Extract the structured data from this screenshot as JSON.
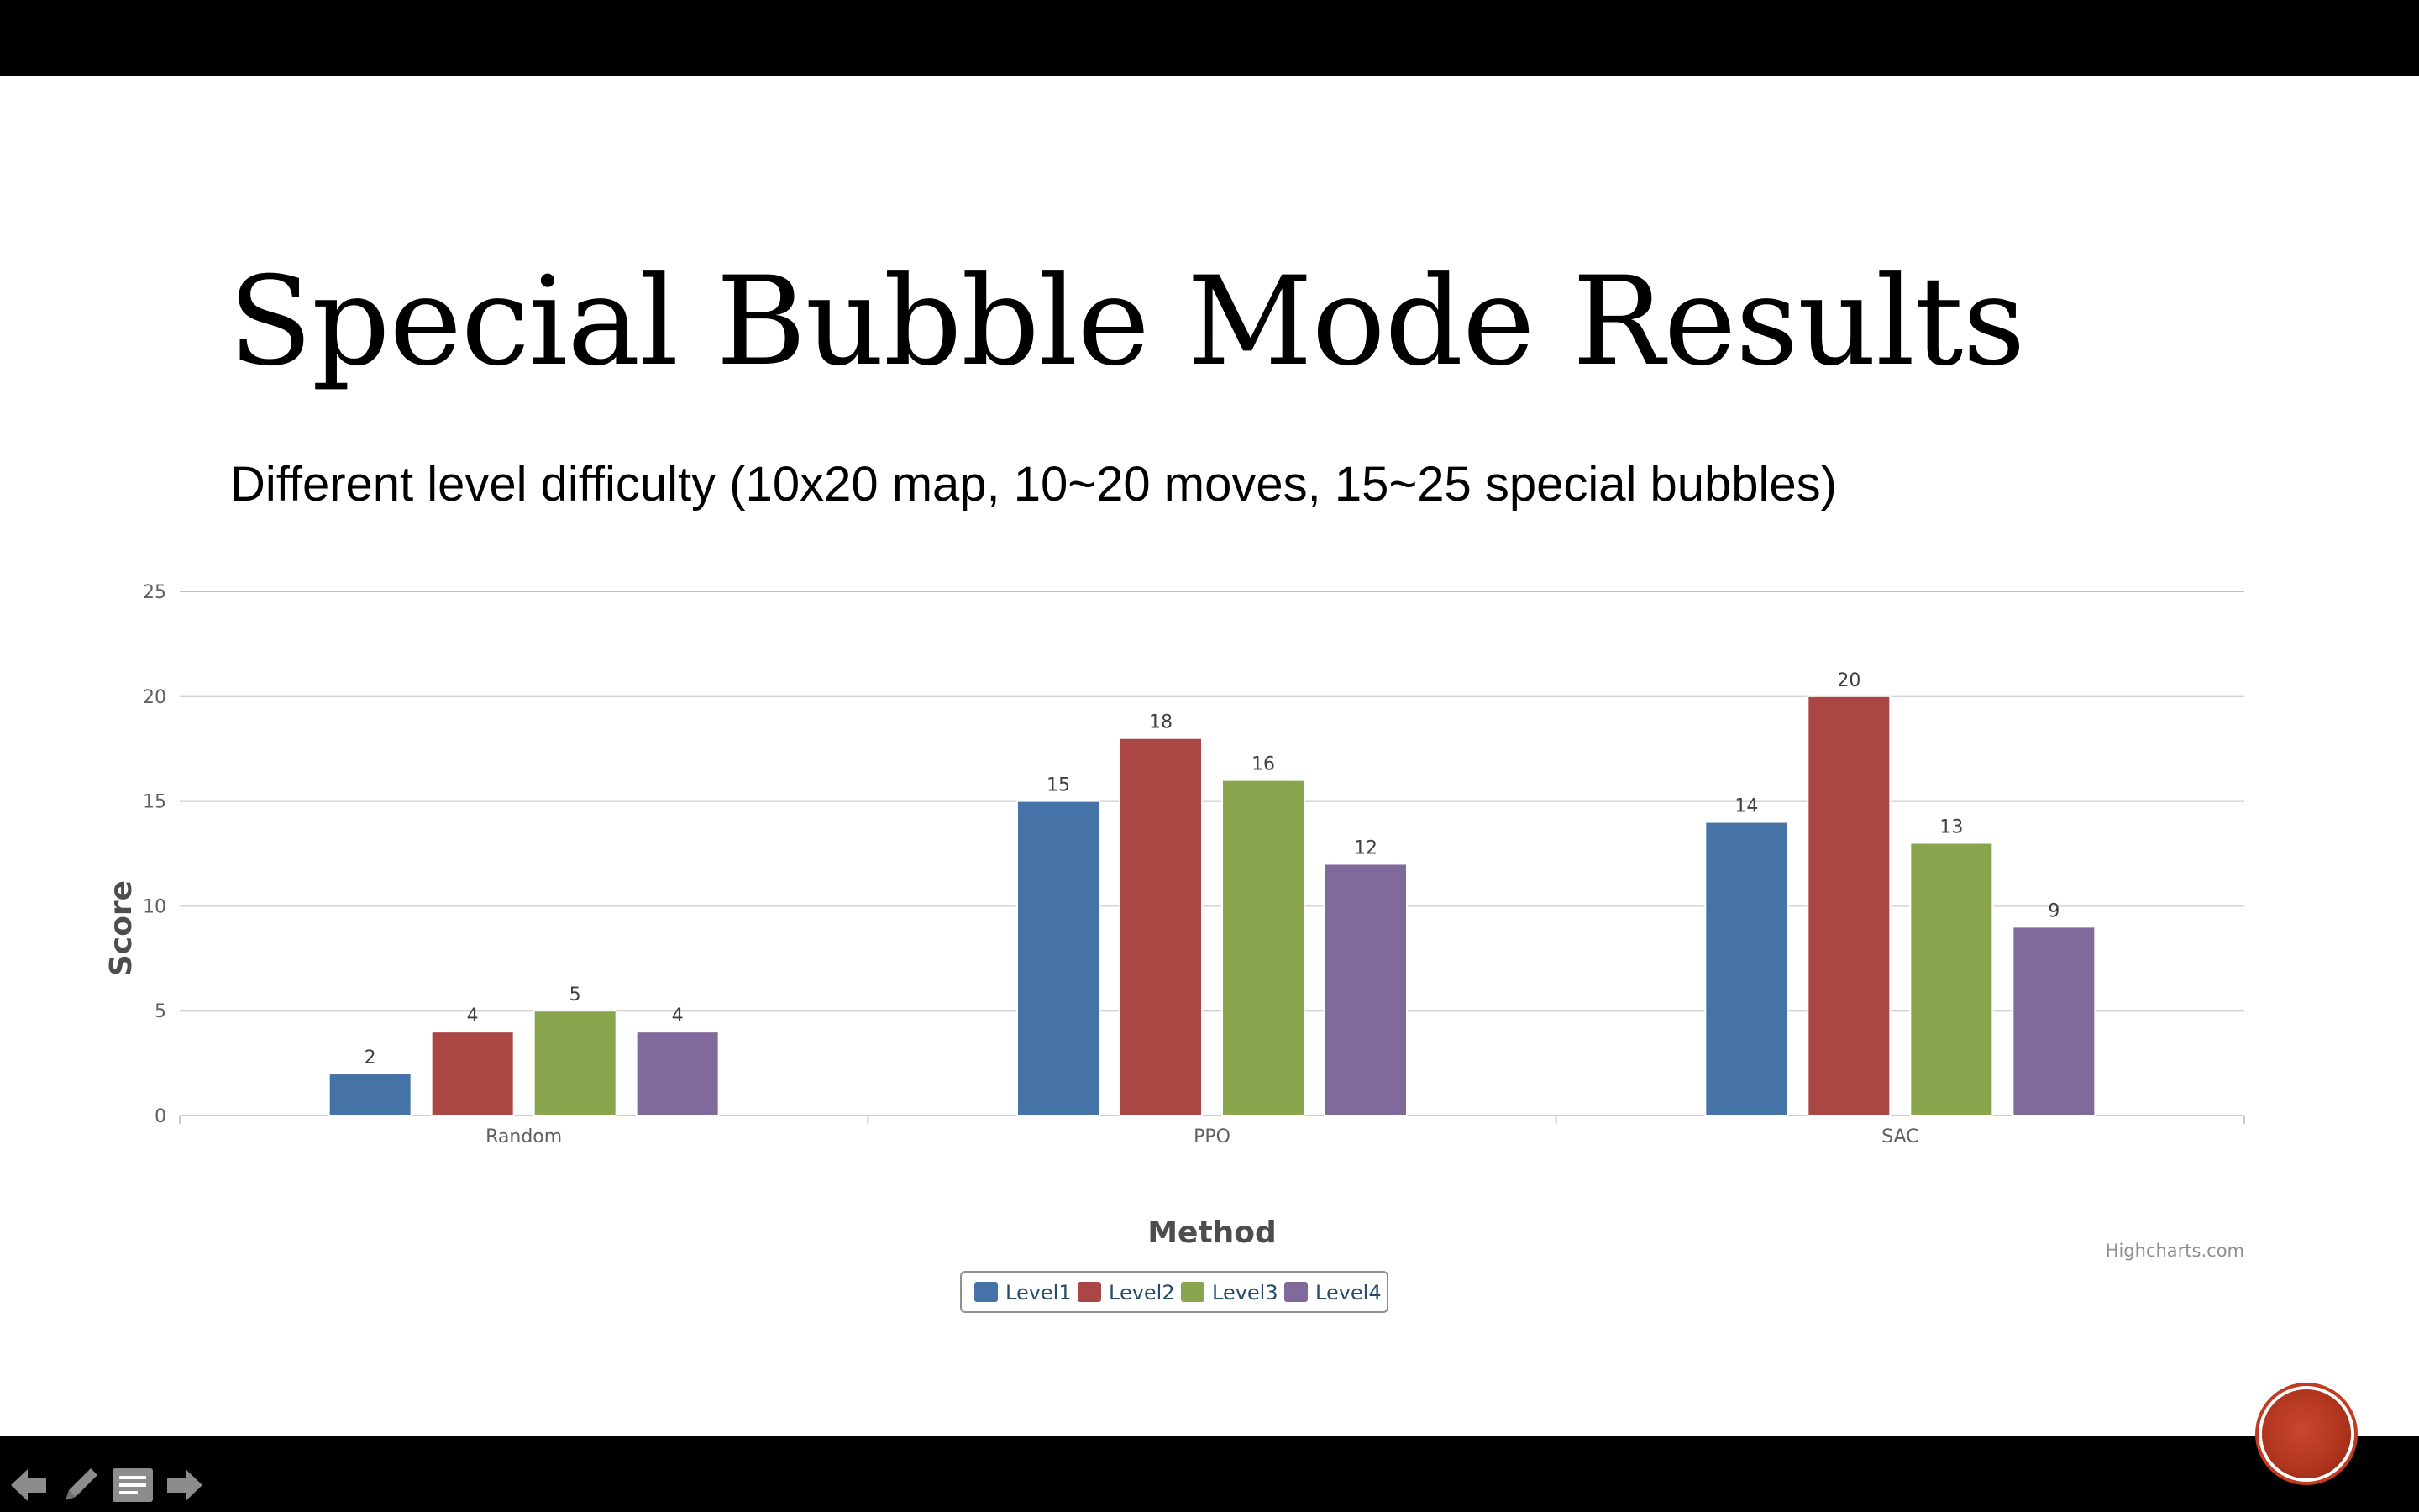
{
  "slide": {
    "title": "Special Bubble Mode Results",
    "subtitle": "Different level difficulty (10x20 map, 10~20 moves, 15~25 special bubbles)",
    "credits": "Highcharts.com"
  },
  "chart_data": {
    "type": "bar",
    "title": "",
    "xlabel": "Method",
    "ylabel": "Score",
    "categories": [
      "Random",
      "PPO",
      "SAC"
    ],
    "ylim": [
      0,
      25
    ],
    "yticks": [
      0,
      5,
      10,
      15,
      20,
      25
    ],
    "grid": true,
    "data_labels": true,
    "legend_position": "bottom-center",
    "series": [
      {
        "name": "Level1",
        "color": "#4572a7",
        "values": [
          2,
          15,
          14
        ]
      },
      {
        "name": "Level2",
        "color": "#aa4643",
        "values": [
          4,
          18,
          20
        ]
      },
      {
        "name": "Level3",
        "color": "#89a54e",
        "values": [
          5,
          16,
          13
        ]
      },
      {
        "name": "Level4",
        "color": "#80699b",
        "values": [
          4,
          12,
          9
        ]
      }
    ]
  },
  "nav": {
    "icons": [
      "arrow-left-icon",
      "pen-icon",
      "notes-icon",
      "arrow-right-icon"
    ]
  }
}
